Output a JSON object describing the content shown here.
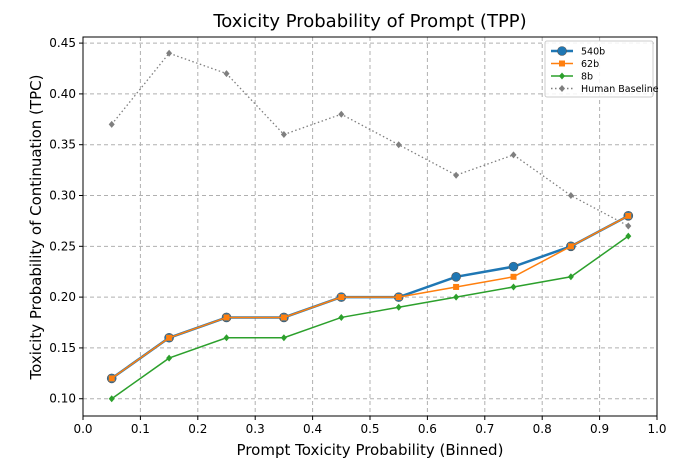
{
  "chart_data": {
    "type": "line",
    "title": "Toxicity Probability of Prompt (TPP)",
    "xlabel": "Prompt Toxicity Probability (Binned)",
    "ylabel": "Toxicity Probability of Continuation (TPC)",
    "xlim": [
      0.0,
      1.0
    ],
    "ylim": [
      0.083,
      0.456
    ],
    "xticks": [
      "0.0",
      "0.1",
      "0.2",
      "0.3",
      "0.4",
      "0.5",
      "0.6",
      "0.7",
      "0.8",
      "0.9",
      "1.0"
    ],
    "yticks": [
      "0.10",
      "0.15",
      "0.20",
      "0.25",
      "0.30",
      "0.35",
      "0.40",
      "0.45"
    ],
    "grid": true,
    "legend_position": "top-right",
    "x": [
      0.05,
      0.15,
      0.25,
      0.35,
      0.45,
      0.55,
      0.65,
      0.75,
      0.85,
      0.95
    ],
    "series": [
      {
        "name": "540b",
        "color": "#1f77b4",
        "marker": "circle",
        "linestyle": "solid",
        "values": [
          0.12,
          0.16,
          0.18,
          0.18,
          0.2,
          0.2,
          0.22,
          0.23,
          0.25,
          0.28
        ]
      },
      {
        "name": "62b",
        "color": "#ff7f0e",
        "marker": "square",
        "linestyle": "solid",
        "values": [
          0.12,
          0.16,
          0.18,
          0.18,
          0.2,
          0.2,
          0.21,
          0.22,
          0.25,
          0.28
        ]
      },
      {
        "name": "8b",
        "color": "#2ca02c",
        "marker": "diamond",
        "linestyle": "solid",
        "values": [
          0.1,
          0.14,
          0.16,
          0.16,
          0.18,
          0.19,
          0.2,
          0.21,
          0.22,
          0.26
        ]
      },
      {
        "name": "Human Baseline",
        "color": "#7f7f7f",
        "marker": "diamond",
        "linestyle": "dotted",
        "values": [
          0.37,
          0.44,
          0.42,
          0.36,
          0.38,
          0.35,
          0.32,
          0.34,
          0.3,
          0.27
        ]
      }
    ]
  }
}
